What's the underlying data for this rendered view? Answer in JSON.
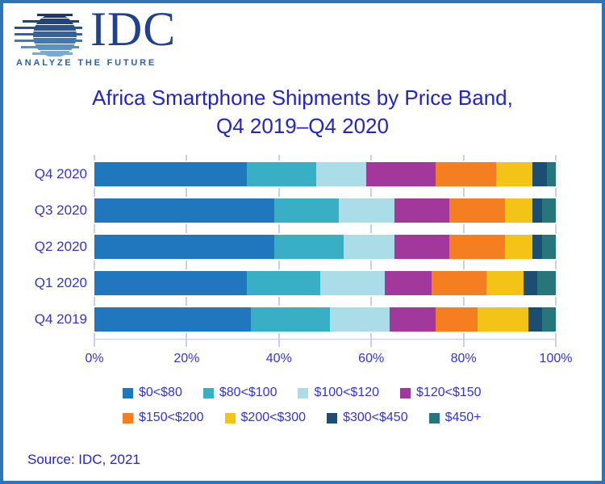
{
  "logo": {
    "wordmark": "IDC",
    "tagline": "ANALYZE THE FUTURE"
  },
  "title": {
    "line1": "Africa Smartphone Shipments by Price Band,",
    "line2": "Q4 2019–Q4 2020"
  },
  "source": "Source: IDC, 2021",
  "colors": {
    "border": "#2E75B6",
    "title_text": "#2324C8",
    "axis_text": "#3434CE",
    "gridline": "#C9CDF5",
    "logo_navy": "#21418F",
    "logo_tagline": "#2C5FA5"
  },
  "chart_data": {
    "type": "bar",
    "orientation": "horizontal",
    "stacked": true,
    "unit": "%",
    "title": "Africa Smartphone Shipments by Price Band, Q4 2019–Q4 2020",
    "categories": [
      "Q4 2020",
      "Q3 2020",
      "Q2 2020",
      "Q1 2020",
      "Q4 2019"
    ],
    "series": [
      {
        "name": "$0<$80",
        "color": "#2177BD",
        "values": [
          33,
          39,
          39,
          33,
          34
        ]
      },
      {
        "name": "$80<$100",
        "color": "#38AFC5",
        "values": [
          15,
          14,
          15,
          16,
          17
        ]
      },
      {
        "name": "$100<$120",
        "color": "#ABDDE8",
        "values": [
          11,
          12,
          11,
          14,
          13
        ]
      },
      {
        "name": "$120<$150",
        "color": "#A2389B",
        "values": [
          15,
          12,
          12,
          10,
          10
        ]
      },
      {
        "name": "$150<$200",
        "color": "#F57E20",
        "values": [
          13,
          12,
          12,
          12,
          9
        ]
      },
      {
        "name": "$200<$300",
        "color": "#F3C317",
        "values": [
          8,
          6,
          6,
          8,
          11
        ]
      },
      {
        "name": "$300<$450",
        "color": "#1C4E74",
        "values": [
          3,
          2,
          2,
          3,
          3
        ]
      },
      {
        "name": "$450+",
        "color": "#27767B",
        "values": [
          2,
          3,
          3,
          4,
          3
        ]
      }
    ],
    "x_ticks": [
      "0%",
      "20%",
      "40%",
      "60%",
      "80%",
      "100%"
    ],
    "xlim": [
      0,
      100
    ],
    "grid": true,
    "legend_position": "bottom"
  }
}
